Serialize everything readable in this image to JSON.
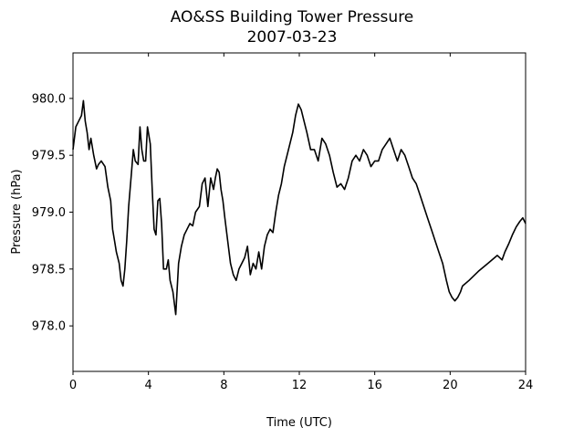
{
  "chart_data": {
    "type": "line",
    "title": "AO&SS Building Tower Pressure",
    "subtitle": "2007-03-23",
    "xlabel": "Time (UTC)",
    "ylabel": "Pressure (hPa)",
    "xlim": [
      0,
      24
    ],
    "ylim": [
      977.6,
      980.4
    ],
    "xticks": [
      0,
      4,
      8,
      12,
      16,
      20,
      24
    ],
    "yticks": [
      978.0,
      978.5,
      979.0,
      979.5,
      980.0
    ],
    "ytick_labels": [
      "978.0",
      "978.5",
      "979.0",
      "979.5",
      "980.0"
    ],
    "grid": false,
    "series": [
      {
        "color": "#000000",
        "x": [
          0,
          0.15,
          0.3,
          0.45,
          0.55,
          0.65,
          0.75,
          0.85,
          0.95,
          1.1,
          1.25,
          1.35,
          1.5,
          1.7,
          1.85,
          2.0,
          2.1,
          2.2,
          2.3,
          2.45,
          2.55,
          2.65,
          2.75,
          2.85,
          2.95,
          3.1,
          3.2,
          3.3,
          3.45,
          3.55,
          3.65,
          3.75,
          3.85,
          3.95,
          4.1,
          4.2,
          4.3,
          4.4,
          4.5,
          4.6,
          4.7,
          4.8,
          4.95,
          5.05,
          5.15,
          5.3,
          5.45,
          5.6,
          5.75,
          5.9,
          6.05,
          6.2,
          6.35,
          6.5,
          6.7,
          6.85,
          7.0,
          7.15,
          7.3,
          7.45,
          7.55,
          7.65,
          7.75,
          7.85,
          7.95,
          8.05,
          8.2,
          8.35,
          8.5,
          8.65,
          8.8,
          8.95,
          9.1,
          9.25,
          9.4,
          9.55,
          9.7,
          9.85,
          10.0,
          10.15,
          10.3,
          10.45,
          10.6,
          10.75,
          10.9,
          11.05,
          11.2,
          11.35,
          11.5,
          11.65,
          11.8,
          11.95,
          12.1,
          12.25,
          12.4,
          12.6,
          12.8,
          13.0,
          13.2,
          13.4,
          13.6,
          13.8,
          14.0,
          14.2,
          14.4,
          14.6,
          14.8,
          15.0,
          15.2,
          15.4,
          15.6,
          15.8,
          16.0,
          16.2,
          16.4,
          16.6,
          16.8,
          17.0,
          17.2,
          17.4,
          17.6,
          17.8,
          18.0,
          18.2,
          18.4,
          18.6,
          18.8,
          19.0,
          19.2,
          19.4,
          19.6,
          19.8,
          19.95,
          20.1,
          20.25,
          20.4,
          20.55,
          20.65,
          21.0,
          21.5,
          22.0,
          22.5,
          22.75,
          22.9,
          23.1,
          23.3,
          23.5,
          23.7,
          23.85,
          24.0
        ],
        "y": [
          979.55,
          979.75,
          979.8,
          979.85,
          979.98,
          979.8,
          979.7,
          979.55,
          979.65,
          979.5,
          979.38,
          979.42,
          979.45,
          979.4,
          979.22,
          979.1,
          978.85,
          978.75,
          978.65,
          978.55,
          978.4,
          978.35,
          978.5,
          978.75,
          979.05,
          979.35,
          979.55,
          979.45,
          979.42,
          979.75,
          979.55,
          979.45,
          979.45,
          979.75,
          979.6,
          979.2,
          978.85,
          978.8,
          979.1,
          979.12,
          978.9,
          978.5,
          978.5,
          978.58,
          978.4,
          978.3,
          978.1,
          978.55,
          978.7,
          978.8,
          978.85,
          978.9,
          978.88,
          979.0,
          979.05,
          979.25,
          979.3,
          979.05,
          979.3,
          979.2,
          979.3,
          979.38,
          979.35,
          979.2,
          979.1,
          978.95,
          978.75,
          978.55,
          978.45,
          978.4,
          978.5,
          978.55,
          978.6,
          978.7,
          978.45,
          978.55,
          978.5,
          978.65,
          978.5,
          978.7,
          978.8,
          978.85,
          978.82,
          979.0,
          979.15,
          979.25,
          979.4,
          979.5,
          979.6,
          979.7,
          979.85,
          979.95,
          979.9,
          979.8,
          979.7,
          979.55,
          979.55,
          979.45,
          979.65,
          979.6,
          979.5,
          979.35,
          979.22,
          979.25,
          979.2,
          979.3,
          979.45,
          979.5,
          979.45,
          979.55,
          979.5,
          979.4,
          979.45,
          979.45,
          979.55,
          979.6,
          979.65,
          979.55,
          979.45,
          979.55,
          979.5,
          979.4,
          979.3,
          979.25,
          979.15,
          979.05,
          978.95,
          978.85,
          978.75,
          978.65,
          978.55,
          978.4,
          978.3,
          978.25,
          978.22,
          978.25,
          978.3,
          978.35,
          978.4,
          978.48,
          978.55,
          978.62,
          978.58,
          978.65,
          978.72,
          978.8,
          978.87,
          978.92,
          978.95,
          978.9
        ]
      }
    ]
  }
}
